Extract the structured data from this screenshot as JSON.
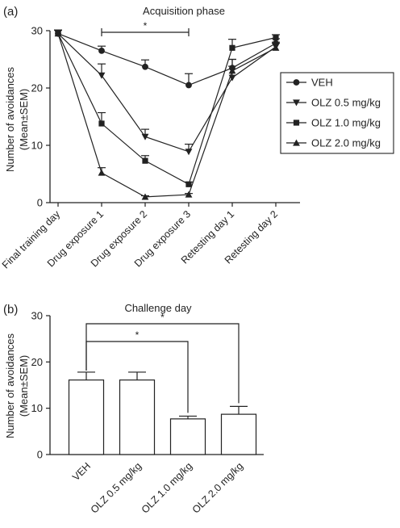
{
  "panel_a_label": "(a)",
  "panel_b_label": "(b)",
  "colors": {
    "ink": "#222222",
    "bar_fill": "#ffffff"
  },
  "chart_data": [
    {
      "type": "line",
      "title": "Acquisition phase",
      "ylabel_line1": "Number of avoidances",
      "ylabel_line2": "(Mean±SEM)",
      "xlabel": "",
      "categories": [
        "Final training day",
        "Drug exposure 1",
        "Drug exposure 2",
        "Drug exposure 3",
        "Retesting day 1",
        "Retesting day 2"
      ],
      "ylim": [
        0,
        30
      ],
      "yticks": [
        "0",
        "10",
        "20",
        "30"
      ],
      "legend_position": "right",
      "series": [
        {
          "name": "VEH",
          "marker": "circle",
          "values": [
            29.5,
            26.5,
            23.7,
            20.5,
            23.5,
            27.8
          ],
          "errors": [
            0.6,
            0.8,
            1.2,
            2.0,
            1.5,
            0.8
          ]
        },
        {
          "name": "OLZ 0.5 mg/kg",
          "marker": "triangle-down",
          "values": [
            29.5,
            22.2,
            11.5,
            8.9,
            21.8,
            27.2
          ],
          "errors": [
            0.6,
            2.0,
            1.3,
            1.3,
            2.0,
            0.8
          ]
        },
        {
          "name": "OLZ 1.0 mg/kg",
          "marker": "square",
          "values": [
            29.5,
            13.8,
            7.3,
            3.2,
            27.0,
            28.8
          ],
          "errors": [
            0.6,
            1.9,
            0.9,
            0.4,
            1.5,
            0.5
          ]
        },
        {
          "name": "OLZ 2.0 mg/kg",
          "marker": "triangle-up",
          "values": [
            29.5,
            5.2,
            1.0,
            1.4,
            23.0,
            27.0
          ],
          "errors": [
            0.6,
            0.9,
            0.2,
            0.2,
            2.0,
            0.8
          ]
        }
      ],
      "significance": {
        "label": "*",
        "from": "Drug exposure 1",
        "to": "Drug exposure 3"
      }
    },
    {
      "type": "bar",
      "title": "Challenge day",
      "ylabel_line1": "Number of avoidances",
      "ylabel_line2": "(Mean±SEM)",
      "xlabel": "",
      "categories": [
        "VEH",
        "OLZ 0.5 mg/kg",
        "OLZ 1.0 mg/kg",
        "OLZ 2.0 mg/kg"
      ],
      "values": [
        16.1,
        16.1,
        7.7,
        8.7
      ],
      "errors": [
        1.7,
        1.7,
        0.6,
        1.7
      ],
      "ylim": [
        0,
        30
      ],
      "yticks": [
        "0",
        "10",
        "20",
        "30"
      ],
      "significance": [
        {
          "label": "*",
          "from": "VEH",
          "to": "OLZ 1.0 mg/kg"
        },
        {
          "label": "*",
          "from": "VEH",
          "to": "OLZ 2.0 mg/kg"
        }
      ]
    }
  ]
}
